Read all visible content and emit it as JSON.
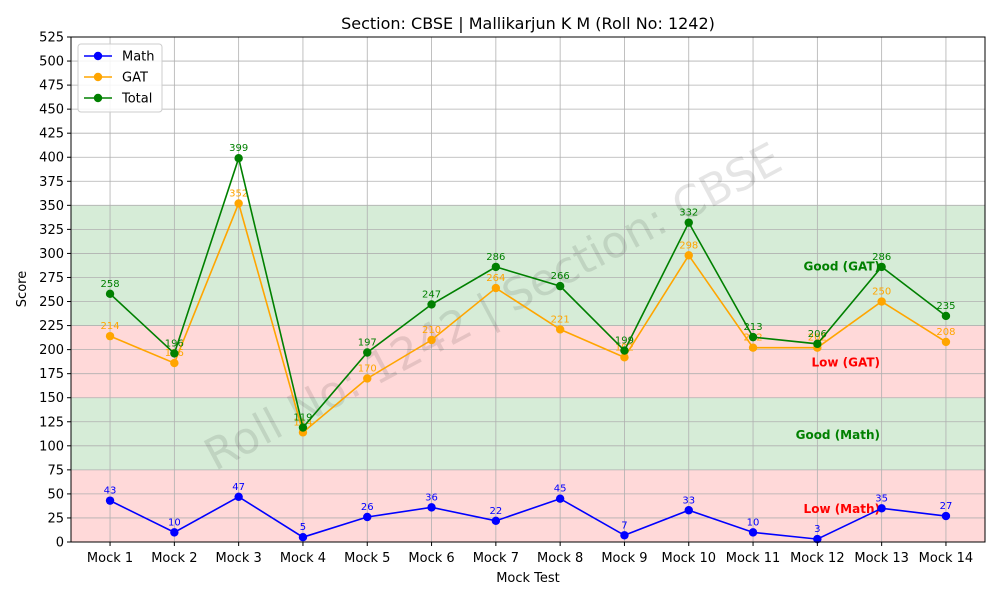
{
  "chart_data": {
    "type": "line",
    "title": "Section: CBSE | Mallikarjun K M (Roll No: 1242)",
    "xlabel": "Mock Test",
    "ylabel": "Score",
    "ylim": [
      0,
      525
    ],
    "y_ticks": [
      0,
      25,
      50,
      75,
      100,
      125,
      150,
      175,
      200,
      225,
      250,
      275,
      300,
      325,
      350,
      375,
      400,
      425,
      450,
      475,
      500,
      525
    ],
    "grid": true,
    "legend_position": "top-left",
    "categories": [
      "Mock 1",
      "Mock 2",
      "Mock 3",
      "Mock 4",
      "Mock 5",
      "Mock 6",
      "Mock 7",
      "Mock 8",
      "Mock 9",
      "Mock 10",
      "Mock 11",
      "Mock 12",
      "Mock 13",
      "Mock 14"
    ],
    "series": [
      {
        "name": "Math",
        "color": "#0000ff",
        "values": [
          43,
          10,
          47,
          5,
          26,
          36,
          22,
          45,
          7,
          33,
          10,
          3,
          35,
          27
        ]
      },
      {
        "name": "GAT",
        "color": "#ffa500",
        "values": [
          214,
          186,
          352,
          114,
          170,
          210,
          264,
          221,
          192,
          298,
          202,
          202,
          250,
          208
        ]
      },
      {
        "name": "Total",
        "color": "#008000",
        "values": [
          258,
          196,
          399,
          119,
          197,
          247,
          286,
          266,
          199,
          332,
          213,
          206,
          286,
          235
        ]
      }
    ],
    "bands": [
      {
        "y0": 0,
        "y1": 75,
        "color": "#ffcccc"
      },
      {
        "y0": 75,
        "y1": 150,
        "color": "#c8e6c9"
      },
      {
        "y0": 150,
        "y1": 225,
        "color": "#ffcccc"
      },
      {
        "y0": 225,
        "y1": 350,
        "color": "#c8e6c9"
      }
    ],
    "band_labels": [
      {
        "text": "Low (Math)",
        "color": "#ff0000",
        "y": 35
      },
      {
        "text": "Good (Math)",
        "color": "#008000",
        "y": 112
      },
      {
        "text": "Low (GAT)",
        "color": "#ff0000",
        "y": 187
      },
      {
        "text": "Good (GAT)",
        "color": "#008000",
        "y": 287
      }
    ],
    "watermark": "Roll No: 1242 | Section: CBSE"
  }
}
